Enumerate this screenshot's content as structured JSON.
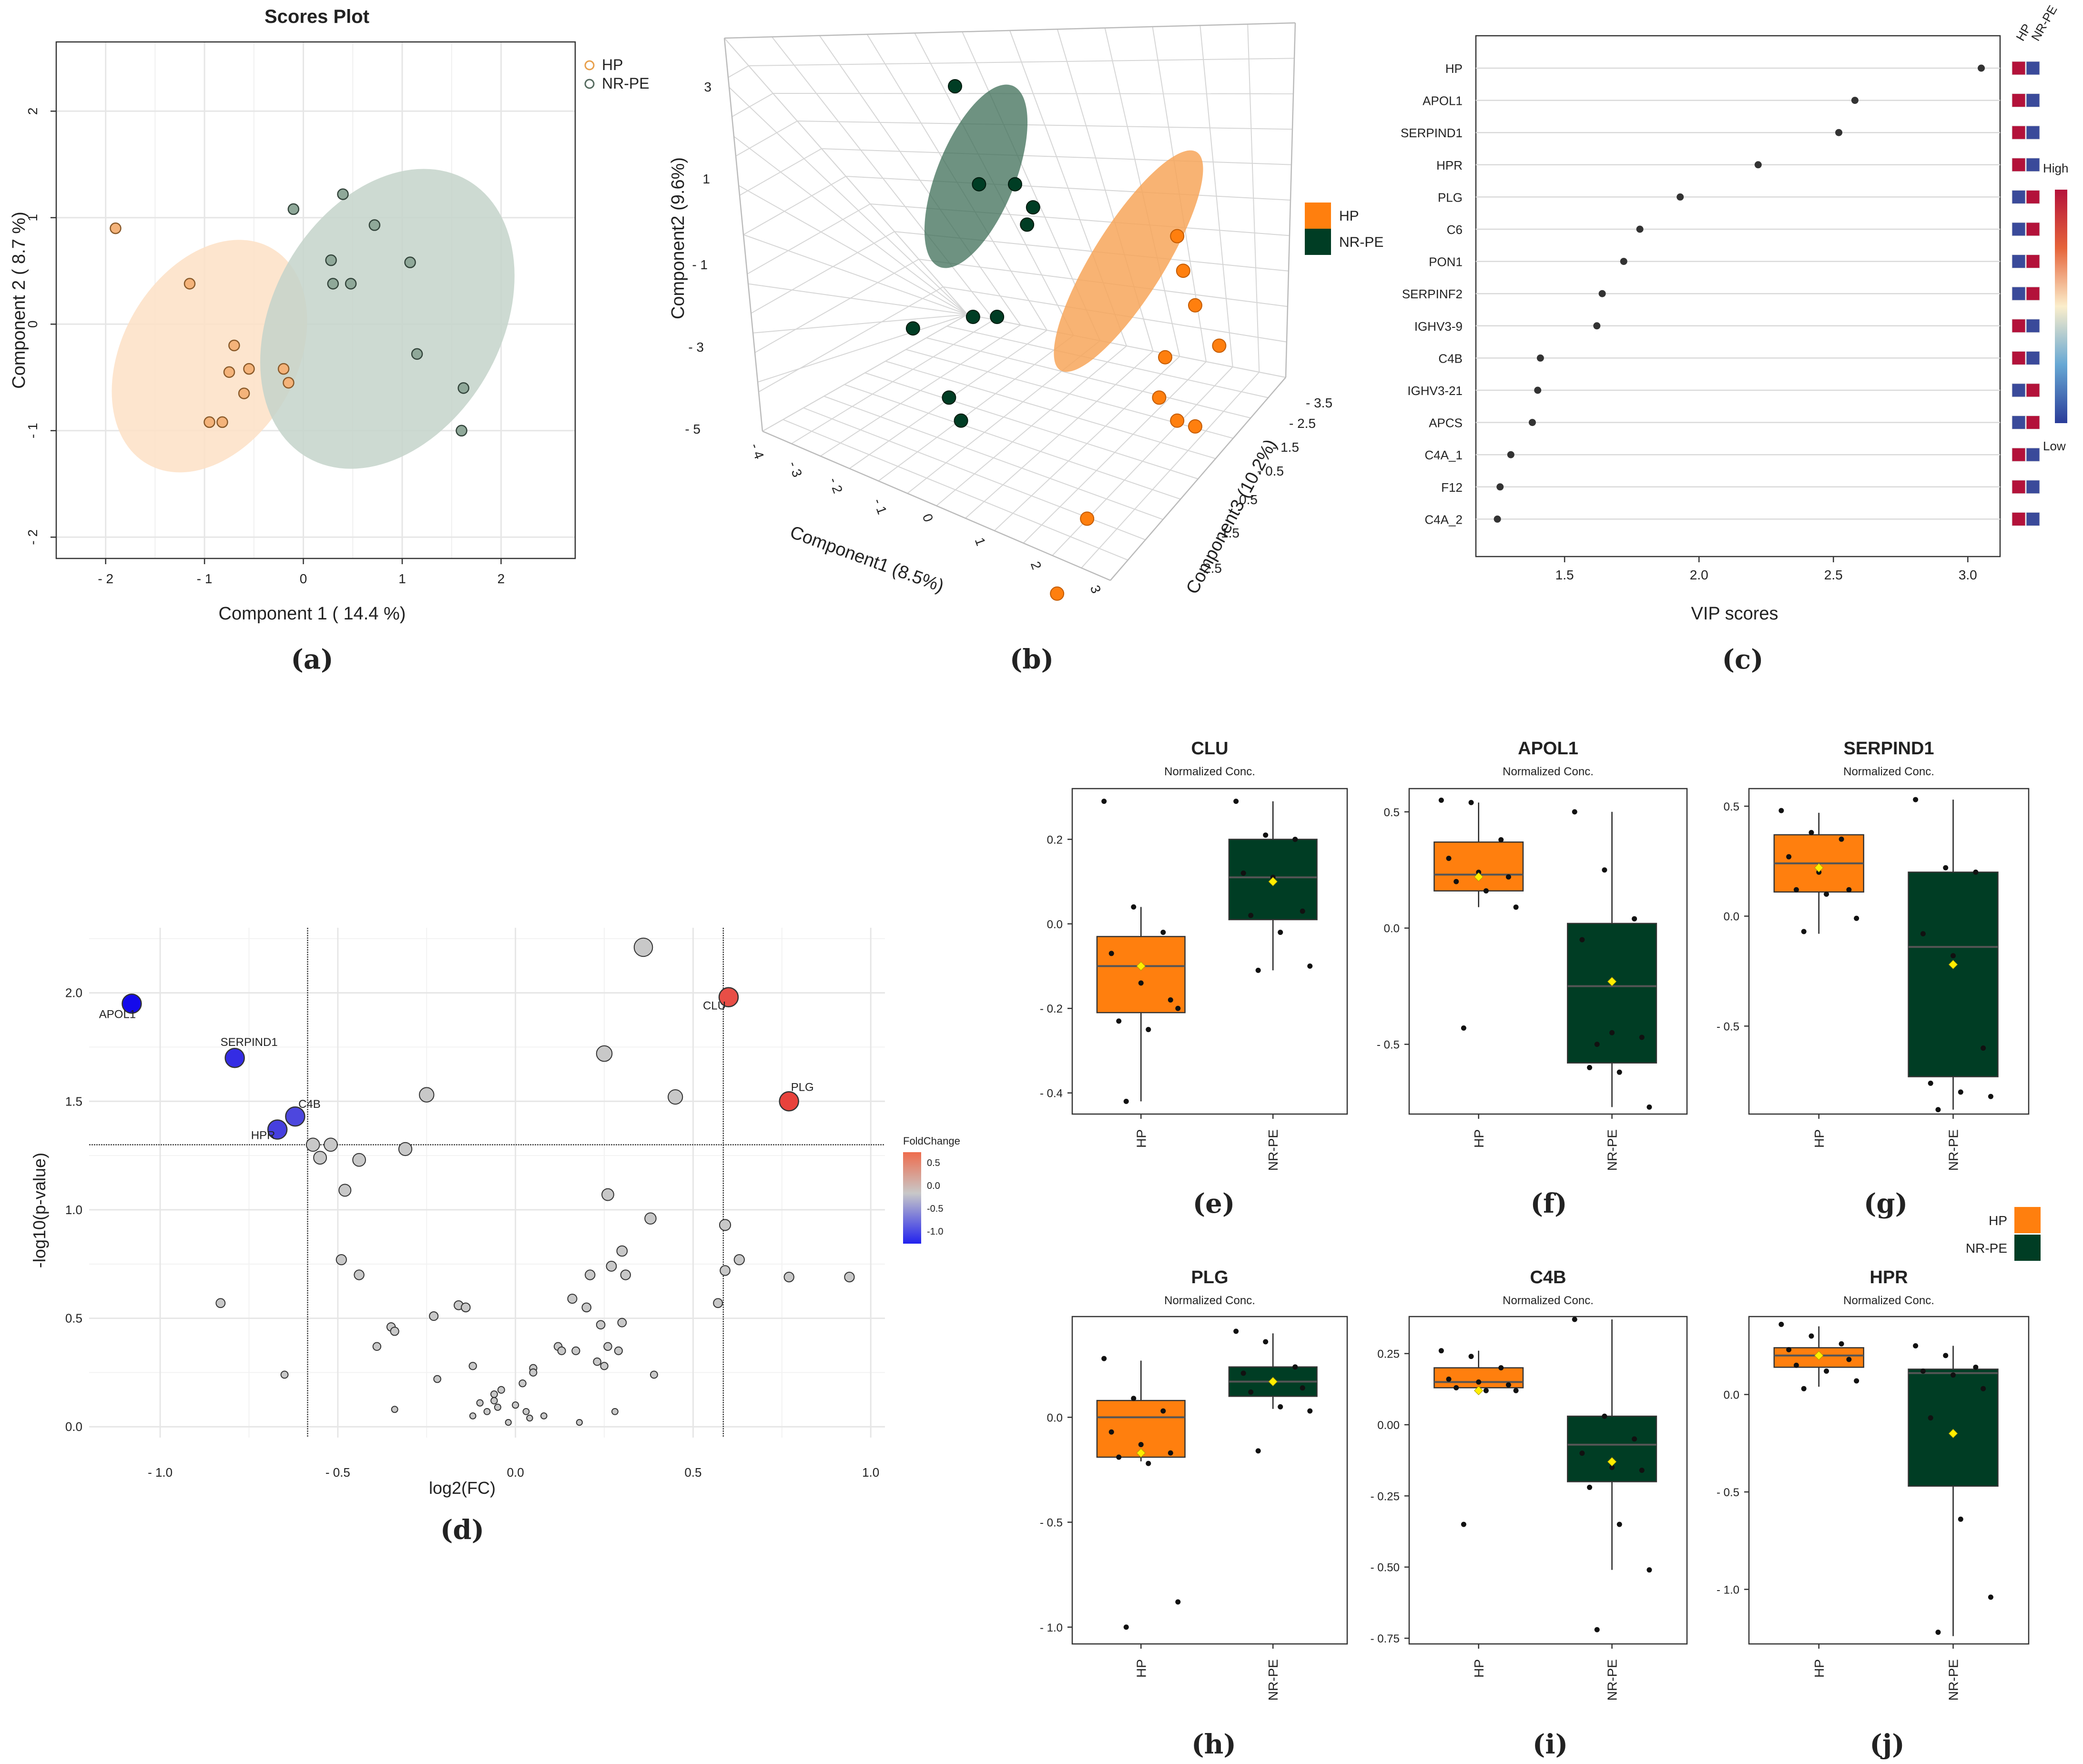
{
  "colors": {
    "hp": "#ff7f0e",
    "nrpe": "#003d24",
    "hp_light": "#f7a65b",
    "nrpe_ellipse": "#3d6e57",
    "hp_ellipse_a": "#fde0c5",
    "nrpe_ellipse_a": "#c4d3ca",
    "neutral": "#c8c8c8",
    "grid": "#e6e6e6"
  },
  "panel_labels": [
    "(a)",
    "(b)",
    "(c)",
    "(d)",
    "(e)",
    "(f)",
    "(g)",
    "(h)",
    "(i)",
    "(j)"
  ],
  "chart_data": [
    {
      "id": "a",
      "type": "scatter",
      "title": "Scores Plot",
      "xlabel": "Component 1 ( 14.4 %)",
      "ylabel": "Component 2 ( 8.7 %)",
      "xlim": [
        -2.5,
        2.75
      ],
      "ylim": [
        -2.2,
        2.65
      ],
      "xticks": [
        -2,
        -1,
        0,
        1,
        2
      ],
      "yticks": [
        -2,
        -1,
        0,
        1,
        2
      ],
      "tick_labels_x": [
        "- 2",
        "- 1",
        "0",
        "1",
        "2"
      ],
      "tick_labels_y": [
        "- 2",
        "- 1",
        "0",
        "1",
        "2"
      ],
      "legend": [
        "HP",
        "NR-PE"
      ],
      "series": [
        {
          "name": "HP",
          "points": [
            [
              -1.9,
              0.9
            ],
            [
              -1.15,
              0.38
            ],
            [
              -0.7,
              -0.2
            ],
            [
              -0.75,
              -0.45
            ],
            [
              -0.55,
              -0.42
            ],
            [
              -0.6,
              -0.65
            ],
            [
              -0.2,
              -0.42
            ],
            [
              -0.15,
              -0.55
            ],
            [
              -0.95,
              -0.92
            ],
            [
              -0.82,
              -0.92
            ]
          ],
          "ellipse": {
            "cx": -0.95,
            "cy": -0.3,
            "rx": 2.1,
            "ry": 0.8,
            "angle_deg": -60
          }
        },
        {
          "name": "NR-PE",
          "points": [
            [
              -0.1,
              1.08
            ],
            [
              0.4,
              1.22
            ],
            [
              0.72,
              0.93
            ],
            [
              0.28,
              0.6
            ],
            [
              0.3,
              0.38
            ],
            [
              0.48,
              0.38
            ],
            [
              1.08,
              0.58
            ],
            [
              1.15,
              -0.28
            ],
            [
              1.62,
              -0.6
            ],
            [
              1.6,
              -1.0
            ]
          ],
          "ellipse": {
            "cx": 0.85,
            "cy": 0.05,
            "rx": 2.7,
            "ry": 1.05,
            "angle_deg": -60
          }
        }
      ]
    },
    {
      "id": "b",
      "type": "scatter3d",
      "xlabel": "Component1 (8.5%)",
      "ylabel": "Component2 (9.6%)",
      "zlabel": "Component3 (10.2%)",
      "x_ticks": [
        "- 4",
        "- 3",
        "- 2",
        "- 1",
        "0",
        "1",
        "2",
        "3"
      ],
      "y_ticks": [
        "- 5",
        "- 3",
        "- 1",
        "1",
        "3"
      ],
      "z_ticks": [
        "- 3.5",
        "- 2.5",
        "- 1.5",
        "- 0.5",
        "0.5",
        "1.5",
        "2.5"
      ],
      "legend": [
        "HP",
        "NR-PE"
      ],
      "series": [
        {
          "name": "NR-PE",
          "proj": [
            [
              0.4,
              0.1
            ],
            [
              0.44,
              0.27
            ],
            [
              0.5,
              0.27
            ],
            [
              0.52,
              0.34
            ],
            [
              0.53,
              0.31
            ],
            [
              0.33,
              0.52
            ],
            [
              0.43,
              0.5
            ],
            [
              0.47,
              0.5
            ],
            [
              0.39,
              0.64
            ],
            [
              0.41,
              0.68
            ]
          ]
        },
        {
          "name": "HP",
          "proj": [
            [
              0.77,
              0.36
            ],
            [
              0.78,
              0.42
            ],
            [
              0.8,
              0.48
            ],
            [
              0.84,
              0.55
            ],
            [
              0.75,
              0.57
            ],
            [
              0.74,
              0.64
            ],
            [
              0.77,
              0.68
            ],
            [
              0.8,
              0.69
            ],
            [
              0.62,
              0.85
            ],
            [
              0.57,
              0.98
            ]
          ]
        }
      ]
    },
    {
      "id": "c",
      "type": "dot",
      "xlabel": "VIP scores",
      "xlim": [
        1.17,
        3.12
      ],
      "xticks": [
        1.5,
        2.0,
        2.5,
        3.0
      ],
      "tick_labels_x": [
        "1.5",
        "2.0",
        "2.5",
        "3.0"
      ],
      "proteins": [
        "HP",
        "APOL1",
        "SERPIND1",
        "HPR",
        "PLG",
        "C6",
        "PON1",
        "SERPINF2",
        "IGHV3-9",
        "C4B",
        "IGHV3-21",
        "APCS",
        "C4A_1",
        "F12",
        "C4A_2"
      ],
      "values": [
        3.05,
        2.58,
        2.52,
        2.22,
        1.93,
        1.78,
        1.72,
        1.64,
        1.62,
        1.41,
        1.4,
        1.38,
        1.3,
        1.26,
        1.25
      ],
      "heat_columns": [
        "HP",
        "NR-PE"
      ],
      "heat_cells": [
        [
          "high",
          "low"
        ],
        [
          "high",
          "low"
        ],
        [
          "high",
          "low"
        ],
        [
          "high",
          "low"
        ],
        [
          "low",
          "high"
        ],
        [
          "low",
          "high"
        ],
        [
          "low",
          "high"
        ],
        [
          "low",
          "high"
        ],
        [
          "high",
          "low"
        ],
        [
          "high",
          "low"
        ],
        [
          "low",
          "high"
        ],
        [
          "low",
          "high"
        ],
        [
          "high",
          "low"
        ],
        [
          "high",
          "low"
        ],
        [
          "high",
          "low"
        ]
      ],
      "colorbar_labels": [
        "High",
        "Low"
      ]
    },
    {
      "id": "d",
      "type": "volcano",
      "xlabel": "log2(FC)",
      "ylabel": "-log10(p-value)",
      "xlim": [
        -1.2,
        1.04
      ],
      "ylim": [
        -0.05,
        2.3
      ],
      "xticks": [
        -1.0,
        -0.5,
        0.0,
        0.5,
        1.0
      ],
      "yticks": [
        0.0,
        0.5,
        1.0,
        1.5,
        2.0
      ],
      "tick_labels_x": [
        "- 1.0",
        "- 0.5",
        "0.0",
        "0.5",
        "1.0"
      ],
      "tick_labels_y": [
        "0.0",
        "0.5",
        "1.0",
        "1.5",
        "2.0"
      ],
      "thresholds": {
        "x": [
          -0.585,
          0.585
        ],
        "y": 1.3
      },
      "legend_title": "FoldChange",
      "legend_ticks": [
        "0.5",
        "0.0",
        "-0.5",
        "-1.0"
      ],
      "labeled_points": [
        {
          "name": "APOL1",
          "x": -1.08,
          "y": 1.95,
          "fc": -1.08
        },
        {
          "name": "SERPIND1",
          "x": -0.79,
          "y": 1.7,
          "fc": -0.79
        },
        {
          "name": "C4B",
          "x": -0.62,
          "y": 1.43,
          "fc": -0.62
        },
        {
          "name": "HPR",
          "x": -0.67,
          "y": 1.37,
          "fc": -0.67
        },
        {
          "name": "CLU",
          "x": 0.6,
          "y": 1.98,
          "fc": 0.6
        },
        {
          "name": "PLG",
          "x": 0.77,
          "y": 1.5,
          "fc": 0.77
        }
      ],
      "points": [
        [
          0.36,
          2.21
        ],
        [
          0.25,
          1.72
        ],
        [
          0.45,
          1.52
        ],
        [
          -0.25,
          1.53
        ],
        [
          -0.31,
          1.28
        ],
        [
          -0.57,
          1.3
        ],
        [
          -0.52,
          1.3
        ],
        [
          -0.55,
          1.24
        ],
        [
          -0.44,
          1.23
        ],
        [
          -0.48,
          1.09
        ],
        [
          0.26,
          1.07
        ],
        [
          0.38,
          0.96
        ],
        [
          0.59,
          0.93
        ],
        [
          0.3,
          0.81
        ],
        [
          0.63,
          0.77
        ],
        [
          0.59,
          0.72
        ],
        [
          -0.49,
          0.77
        ],
        [
          -0.44,
          0.7
        ],
        [
          0.27,
          0.74
        ],
        [
          0.21,
          0.7
        ],
        [
          0.31,
          0.7
        ],
        [
          0.77,
          0.69
        ],
        [
          0.94,
          0.69
        ],
        [
          0.57,
          0.57
        ],
        [
          -0.83,
          0.57
        ],
        [
          0.16,
          0.59
        ],
        [
          0.2,
          0.55
        ],
        [
          -0.16,
          0.56
        ],
        [
          -0.14,
          0.55
        ],
        [
          0.24,
          0.47
        ],
        [
          0.3,
          0.48
        ],
        [
          -0.23,
          0.51
        ],
        [
          -0.35,
          0.46
        ],
        [
          -0.34,
          0.44
        ],
        [
          0.12,
          0.37
        ],
        [
          0.13,
          0.35
        ],
        [
          0.17,
          0.35
        ],
        [
          0.26,
          0.37
        ],
        [
          0.29,
          0.35
        ],
        [
          -0.39,
          0.37
        ],
        [
          -0.22,
          0.22
        ],
        [
          0.23,
          0.3
        ],
        [
          0.25,
          0.28
        ],
        [
          -0.12,
          0.28
        ],
        [
          0.39,
          0.24
        ],
        [
          0.05,
          0.27
        ],
        [
          0.05,
          0.25
        ],
        [
          0.02,
          0.2
        ],
        [
          -0.04,
          0.17
        ],
        [
          -0.06,
          0.15
        ],
        [
          -0.06,
          0.12
        ],
        [
          -0.05,
          0.09
        ],
        [
          0.0,
          0.1
        ],
        [
          0.03,
          0.07
        ],
        [
          0.04,
          0.04
        ],
        [
          0.08,
          0.05
        ],
        [
          -0.08,
          0.07
        ],
        [
          -0.12,
          0.05
        ],
        [
          -0.1,
          0.11
        ],
        [
          -0.02,
          0.02
        ],
        [
          0.18,
          0.02
        ],
        [
          0.28,
          0.07
        ],
        [
          -0.65,
          0.24
        ],
        [
          -0.34,
          0.08
        ]
      ]
    },
    {
      "id": "e",
      "type": "box",
      "title": "CLU",
      "subtitle": "Normalized Conc.",
      "categories": [
        "HP",
        "NR-PE"
      ],
      "ylim": [
        -0.45,
        0.32
      ],
      "yticks": [
        0.2,
        0.0,
        -0.2,
        -0.4
      ],
      "tick_labels_y": [
        "0.2",
        "0.0",
        "- 0.2",
        "- 0.4"
      ],
      "boxes": [
        {
          "q1": -0.21,
          "median": -0.1,
          "q3": -0.03,
          "whisker_low": -0.42,
          "whisker_high": 0.04,
          "mean": -0.1,
          "points": [
            0.29,
            0.04,
            -0.02,
            -0.07,
            -0.14,
            -0.18,
            -0.23,
            -0.25,
            -0.2,
            -0.42
          ]
        },
        {
          "q1": 0.01,
          "median": 0.11,
          "q3": 0.2,
          "whisker_low": -0.11,
          "whisker_high": 0.29,
          "mean": 0.1,
          "points": [
            0.29,
            0.21,
            0.2,
            0.12,
            0.11,
            0.03,
            0.02,
            -0.02,
            -0.1,
            -0.11
          ]
        }
      ]
    },
    {
      "id": "f",
      "type": "box",
      "title": "APOL1",
      "subtitle": "Normalized Conc.",
      "categories": [
        "HP",
        "NR-PE"
      ],
      "ylim": [
        -0.8,
        0.6
      ],
      "yticks": [
        0.5,
        0.0,
        -0.5
      ],
      "tick_labels_y": [
        "0.5",
        "0.0",
        "- 0.5"
      ],
      "boxes": [
        {
          "q1": 0.16,
          "median": 0.23,
          "q3": 0.37,
          "whisker_low": 0.09,
          "whisker_high": 0.54,
          "mean": 0.22,
          "points": [
            0.55,
            0.54,
            0.38,
            0.3,
            0.24,
            0.22,
            0.2,
            0.16,
            0.09,
            -0.43
          ]
        },
        {
          "q1": -0.58,
          "median": -0.25,
          "q3": 0.02,
          "whisker_low": -0.77,
          "whisker_high": 0.5,
          "mean": -0.23,
          "points": [
            0.5,
            0.25,
            0.04,
            -0.05,
            -0.45,
            -0.47,
            -0.6,
            -0.62,
            -0.77,
            -0.5
          ]
        }
      ]
    },
    {
      "id": "g",
      "type": "box",
      "title": "SERPIND1",
      "subtitle": "Normalized Conc.",
      "categories": [
        "HP",
        "NR-PE"
      ],
      "ylim": [
        -0.9,
        0.58
      ],
      "yticks": [
        0.5,
        0.0,
        -0.5
      ],
      "tick_labels_y": [
        "0.5",
        "0.0",
        "- 0.5"
      ],
      "boxes": [
        {
          "q1": 0.11,
          "median": 0.24,
          "q3": 0.37,
          "whisker_low": -0.08,
          "whisker_high": 0.47,
          "mean": 0.22,
          "points": [
            0.48,
            0.38,
            0.35,
            0.27,
            0.2,
            0.12,
            0.12,
            0.1,
            -0.01,
            -0.07
          ]
        },
        {
          "q1": -0.73,
          "median": -0.14,
          "q3": 0.2,
          "whisker_low": -0.88,
          "whisker_high": 0.53,
          "mean": -0.22,
          "points": [
            0.53,
            0.22,
            0.2,
            -0.08,
            -0.18,
            -0.6,
            -0.76,
            -0.8,
            -0.82,
            -0.88
          ]
        }
      ]
    },
    {
      "id": "h",
      "type": "box",
      "title": "PLG",
      "subtitle": "Normalized Conc.",
      "categories": [
        "HP",
        "NR-PE"
      ],
      "ylim": [
        -1.08,
        0.48
      ],
      "yticks": [
        0.0,
        -0.5,
        -1.0
      ],
      "tick_labels_y": [
        "0.0",
        "- 0.5",
        "- 1.0"
      ],
      "boxes": [
        {
          "q1": -0.19,
          "median": 0.0,
          "q3": 0.08,
          "whisker_low": -0.21,
          "whisker_high": 0.27,
          "mean": -0.17,
          "points": [
            0.28,
            0.09,
            0.03,
            -0.07,
            -0.13,
            -0.17,
            -0.19,
            -0.22,
            -0.88,
            -1.0
          ]
        },
        {
          "q1": 0.1,
          "median": 0.17,
          "q3": 0.24,
          "whisker_low": 0.04,
          "whisker_high": 0.4,
          "mean": 0.17,
          "points": [
            0.41,
            0.36,
            0.24,
            0.21,
            0.17,
            0.14,
            0.12,
            0.05,
            0.03,
            -0.16
          ]
        }
      ]
    },
    {
      "id": "i",
      "type": "box",
      "title": "C4B",
      "subtitle": "Normalized Conc.",
      "categories": [
        "HP",
        "NR-PE"
      ],
      "ylim": [
        -0.77,
        0.38
      ],
      "yticks": [
        0.25,
        0.0,
        -0.25,
        -0.5,
        -0.75
      ],
      "tick_labels_y": [
        "0.25",
        "0.00",
        "- 0.25",
        "- 0.50",
        "- 0.75"
      ],
      "boxes": [
        {
          "q1": 0.13,
          "median": 0.15,
          "q3": 0.2,
          "whisker_low": 0.12,
          "whisker_high": 0.26,
          "mean": 0.12,
          "points": [
            0.26,
            0.24,
            0.2,
            0.16,
            0.15,
            0.14,
            0.13,
            0.12,
            0.12,
            -0.35
          ]
        },
        {
          "q1": -0.2,
          "median": -0.07,
          "q3": 0.03,
          "whisker_low": -0.51,
          "whisker_high": 0.37,
          "mean": -0.13,
          "points": [
            0.37,
            0.03,
            -0.05,
            -0.1,
            -0.15,
            -0.16,
            -0.22,
            -0.35,
            -0.51,
            -0.72
          ]
        }
      ]
    },
    {
      "id": "j",
      "type": "box",
      "title": "HPR",
      "subtitle": "Normalized Conc.",
      "categories": [
        "HP",
        "NR-PE"
      ],
      "ylim": [
        -1.28,
        0.4
      ],
      "yticks": [
        0.0,
        -0.5,
        -1.0
      ],
      "tick_labels_y": [
        "0.0",
        "- 0.5",
        "- 1.0"
      ],
      "boxes": [
        {
          "q1": 0.14,
          "median": 0.2,
          "q3": 0.24,
          "whisker_low": 0.04,
          "whisker_high": 0.35,
          "mean": 0.2,
          "points": [
            0.36,
            0.3,
            0.26,
            0.23,
            0.2,
            0.18,
            0.15,
            0.12,
            0.07,
            0.03
          ]
        },
        {
          "q1": -0.47,
          "median": 0.11,
          "q3": 0.13,
          "whisker_low": -1.24,
          "whisker_high": 0.25,
          "mean": -0.2,
          "points": [
            0.25,
            0.2,
            0.14,
            0.12,
            0.1,
            0.03,
            -0.12,
            -0.64,
            -1.04,
            -1.22
          ]
        }
      ]
    }
  ],
  "boxplot_legend": [
    "HP",
    "NR-PE"
  ]
}
